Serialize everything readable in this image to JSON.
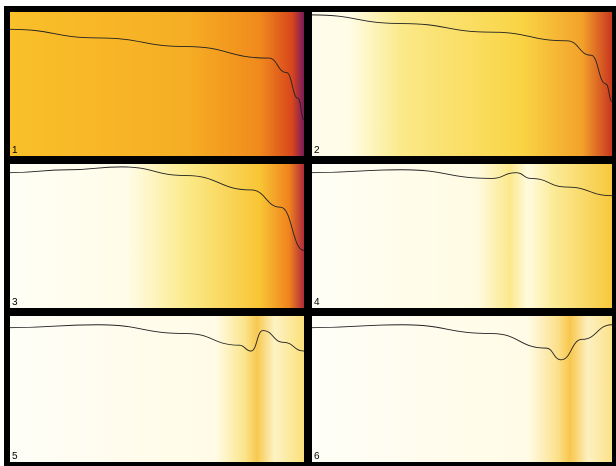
{
  "panels": [
    {
      "label": "1"
    },
    {
      "label": "2"
    },
    {
      "label": "3"
    },
    {
      "label": "4"
    },
    {
      "label": "5"
    },
    {
      "label": "6"
    }
  ]
}
